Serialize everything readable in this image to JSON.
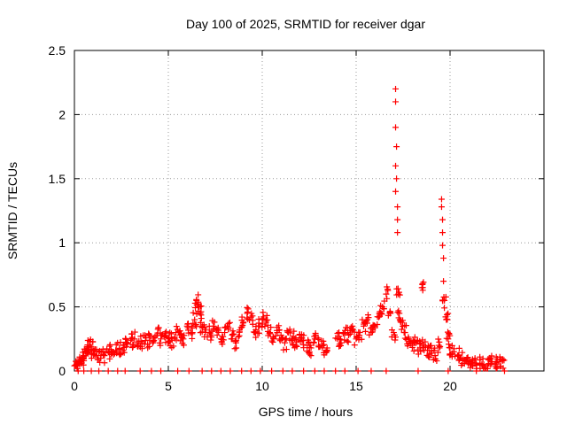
{
  "chart_data": {
    "type": "scatter",
    "title": "Day 100 of 2025, SRMTID for receiver dgar",
    "xlabel": "GPS time / hours",
    "ylabel": "SRMTID / TECUs",
    "xlim": [
      0,
      25
    ],
    "ylim": [
      0,
      2.5
    ],
    "xticks": [
      0,
      5,
      10,
      15,
      20
    ],
    "yticks": [
      0,
      0.5,
      1,
      1.5,
      2,
      2.5
    ],
    "ytick_labels": [
      "0",
      "0.5",
      "1",
      "1.5",
      "2",
      "2.5"
    ],
    "grid": true,
    "marker": "+",
    "color": "#ff0000",
    "series": [
      {
        "name": "SRMTID",
        "x": [
          0.0,
          0.1,
          0.2,
          0.3,
          0.4,
          0.5,
          0.6,
          0.7,
          0.8,
          0.9,
          1.0,
          1.2,
          1.4,
          1.6,
          1.8,
          2.0,
          2.2,
          2.4,
          2.6,
          2.8,
          3.0,
          3.2,
          3.4,
          3.6,
          3.8,
          4.0,
          4.2,
          4.4,
          4.6,
          4.8,
          5.0,
          5.2,
          5.4,
          5.6,
          5.8,
          6.0,
          6.2,
          6.4,
          6.5,
          6.6,
          6.7,
          6.8,
          7.0,
          7.2,
          7.4,
          7.6,
          7.8,
          8.0,
          8.2,
          8.4,
          8.6,
          8.8,
          9.0,
          9.2,
          9.4,
          9.6,
          9.8,
          10.0,
          10.2,
          10.4,
          10.6,
          10.8,
          11.0,
          11.2,
          11.4,
          11.6,
          11.8,
          12.0,
          12.2,
          12.4,
          12.6,
          12.8,
          13.0,
          13.2,
          13.4,
          14.0,
          14.2,
          14.4,
          14.6,
          14.8,
          15.0,
          15.2,
          15.4,
          15.6,
          15.8,
          16.0,
          16.2,
          16.4,
          16.6,
          16.8,
          17.0,
          17.1,
          17.1,
          17.1,
          17.15,
          17.1,
          17.15,
          17.1,
          17.2,
          17.2,
          17.2,
          17.25,
          17.3,
          17.4,
          17.6,
          17.8,
          18.0,
          18.2,
          18.4,
          18.5,
          18.6,
          18.8,
          19.0,
          19.2,
          19.4,
          19.55,
          19.55,
          19.6,
          19.6,
          19.6,
          19.65,
          19.65,
          19.7,
          19.8,
          19.9,
          20.0,
          20.2,
          20.4,
          20.6,
          20.8,
          21.0,
          21.2,
          21.4,
          21.6,
          21.8,
          22.0,
          22.2,
          22.4,
          22.6,
          22.8
        ],
        "y": [
          0.04,
          0.05,
          0.06,
          0.08,
          0.1,
          0.12,
          0.15,
          0.18,
          0.2,
          0.18,
          0.16,
          0.12,
          0.1,
          0.12,
          0.15,
          0.14,
          0.16,
          0.17,
          0.2,
          0.22,
          0.24,
          0.25,
          0.2,
          0.22,
          0.26,
          0.24,
          0.23,
          0.28,
          0.25,
          0.27,
          0.26,
          0.24,
          0.3,
          0.28,
          0.25,
          0.35,
          0.3,
          0.4,
          0.55,
          0.5,
          0.45,
          0.35,
          0.32,
          0.3,
          0.35,
          0.28,
          0.25,
          0.3,
          0.34,
          0.28,
          0.22,
          0.32,
          0.38,
          0.45,
          0.42,
          0.3,
          0.35,
          0.4,
          0.38,
          0.3,
          0.25,
          0.3,
          0.28,
          0.22,
          0.3,
          0.25,
          0.2,
          0.28,
          0.24,
          0.2,
          0.18,
          0.25,
          0.2,
          0.18,
          0.15,
          0.25,
          0.22,
          0.3,
          0.28,
          0.35,
          0.25,
          0.3,
          0.35,
          0.4,
          0.3,
          0.35,
          0.42,
          0.5,
          0.6,
          0.45,
          0.3,
          2.2,
          2.1,
          1.9,
          1.75,
          1.6,
          1.5,
          1.4,
          1.28,
          1.18,
          1.08,
          0.6,
          0.45,
          0.38,
          0.3,
          0.25,
          0.2,
          0.22,
          0.18,
          0.65,
          0.2,
          0.16,
          0.14,
          0.12,
          0.2,
          1.34,
          1.28,
          1.18,
          1.08,
          0.98,
          0.88,
          0.7,
          0.55,
          0.4,
          0.25,
          0.18,
          0.15,
          0.12,
          0.1,
          0.08,
          0.07,
          0.06,
          0.05,
          0.06,
          0.05,
          0.04,
          0.06,
          0.05,
          0.07,
          0.08
        ]
      }
    ],
    "zero_ticks_x": [
      0.2,
      0.5,
      0.9,
      1.3,
      1.8,
      2.3,
      2.7,
      3.5,
      4.1,
      4.6,
      5.5,
      6.1,
      6.8,
      7.3,
      7.8,
      8.3,
      8.9,
      9.4,
      9.9,
      10.5,
      11.1,
      11.6,
      12.2,
      12.8,
      13.3,
      13.9,
      14.4,
      15.1,
      15.8,
      16.6,
      18.3,
      19.9,
      21.4,
      22.9
    ]
  }
}
